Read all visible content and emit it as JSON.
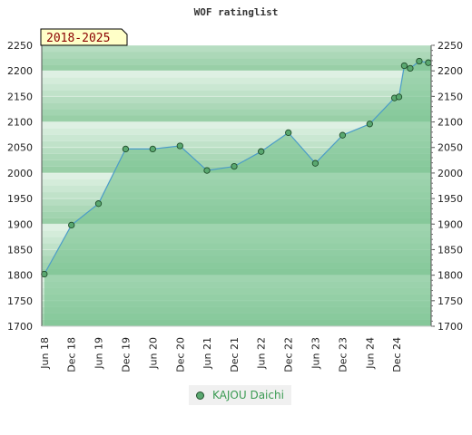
{
  "chart_data": {
    "type": "area",
    "title": "WOF ratinglist",
    "badge": "2018-2025",
    "ylim": [
      1700,
      2250
    ],
    "yticks": [
      1700,
      1750,
      1800,
      1850,
      1900,
      1950,
      2000,
      2050,
      2100,
      2150,
      2200,
      2250
    ],
    "xlim": [
      "2018-05-15",
      "2025-07-20"
    ],
    "xticks": [
      {
        "date": "2018-06-01",
        "label": "Jun 18"
      },
      {
        "date": "2018-12-01",
        "label": "Dec 18"
      },
      {
        "date": "2019-06-01",
        "label": "Jun 19"
      },
      {
        "date": "2019-12-01",
        "label": "Dec 19"
      },
      {
        "date": "2020-06-01",
        "label": "Jun 20"
      },
      {
        "date": "2020-12-01",
        "label": "Dec 20"
      },
      {
        "date": "2021-06-01",
        "label": "Jun 21"
      },
      {
        "date": "2021-12-01",
        "label": "Dec 21"
      },
      {
        "date": "2022-06-01",
        "label": "Jun 22"
      },
      {
        "date": "2022-12-01",
        "label": "Dec 22"
      },
      {
        "date": "2023-06-01",
        "label": "Jun 23"
      },
      {
        "date": "2023-12-01",
        "label": "Dec 23"
      },
      {
        "date": "2024-06-01",
        "label": "Jun 24"
      },
      {
        "date": "2024-12-01",
        "label": "Dec 24"
      }
    ],
    "grid": true,
    "legend_position": "bottom-center",
    "series": [
      {
        "name": "KAJOU Daichi",
        "points": [
          {
            "x": "2018-06-01",
            "y": 1802
          },
          {
            "x": "2018-12-01",
            "y": 1898
          },
          {
            "x": "2019-06-01",
            "y": 1940
          },
          {
            "x": "2019-12-01",
            "y": 2047
          },
          {
            "x": "2020-06-01",
            "y": 2047
          },
          {
            "x": "2020-12-01",
            "y": 2053
          },
          {
            "x": "2021-06-01",
            "y": 2005
          },
          {
            "x": "2021-12-01",
            "y": 2013
          },
          {
            "x": "2022-06-01",
            "y": 2042
          },
          {
            "x": "2022-12-01",
            "y": 2079
          },
          {
            "x": "2023-06-01",
            "y": 2019
          },
          {
            "x": "2023-12-01",
            "y": 2074
          },
          {
            "x": "2024-06-01",
            "y": 2096
          },
          {
            "x": "2024-11-15",
            "y": 2147
          },
          {
            "x": "2024-12-15",
            "y": 2149
          },
          {
            "x": "2025-01-20",
            "y": 2210
          },
          {
            "x": "2025-03-01",
            "y": 2205
          },
          {
            "x": "2025-05-01",
            "y": 2219
          },
          {
            "x": "2025-07-01",
            "y": 2216
          }
        ]
      }
    ],
    "colors": {
      "area_fill": "#7dc493",
      "line": "#4b9cc8",
      "marker_fill": "#5aa870",
      "marker_stroke": "#1f4d2a",
      "band_light": "#eef8f0",
      "band_dark": "#7cc18f",
      "badge_fill": "#ffffc8",
      "badge_text": "#8b0000",
      "legend_text": "#3a9a52"
    }
  }
}
